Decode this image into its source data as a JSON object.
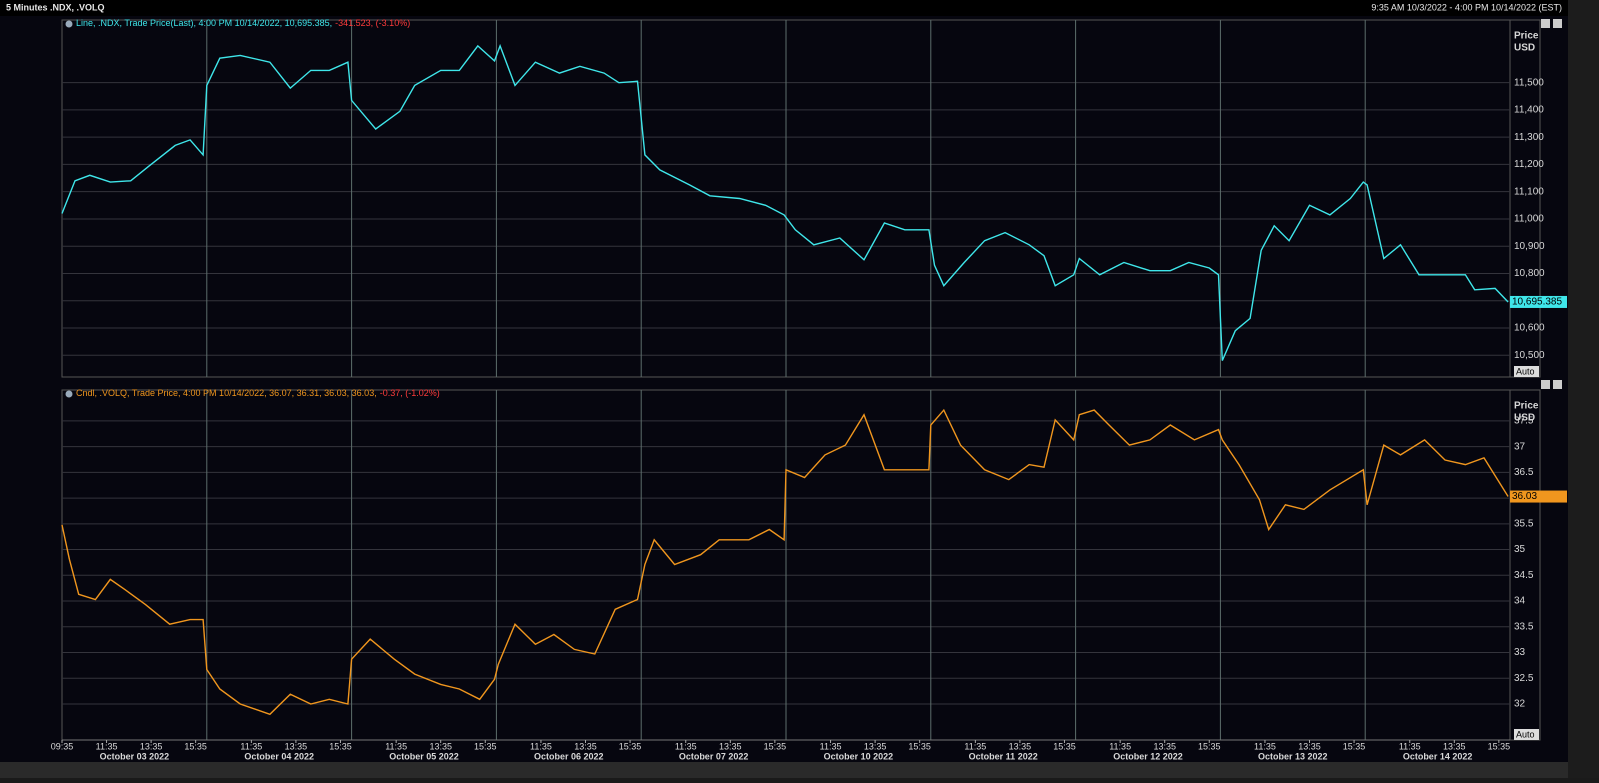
{
  "header": {
    "title": "5 Minutes .NDX, .VOLQ",
    "range": "9:35 AM 10/3/2022 - 4:00 PM 10/14/2022 (EST)"
  },
  "chart_data": [
    {
      "type": "line",
      "legend": "Line, .NDX, Trade Price(Last), 4:00 PM 10/14/2022, 10,695.385,",
      "legend_change": "-341.523, (-3.10%)",
      "ylabel": "Price",
      "yunit": "USD",
      "scale_button": "Auto",
      "last_label": "10,695.385",
      "color": "#3fe6ea",
      "grid": true,
      "xlim": [
        0,
        780
      ],
      "ylim": [
        10420,
        11730
      ],
      "yticks": [
        {
          "value": 10500,
          "label": "10,500"
        },
        {
          "value": 10600,
          "label": "10,600"
        },
        {
          "value": 10700,
          "label": "10,700"
        },
        {
          "value": 10800,
          "label": "10,800"
        },
        {
          "value": 10900,
          "label": "10,900"
        },
        {
          "value": 11000,
          "label": "11,000"
        },
        {
          "value": 11100,
          "label": "11,100"
        },
        {
          "value": 11200,
          "label": "11,200"
        },
        {
          "value": 11300,
          "label": "11,300"
        },
        {
          "value": 11400,
          "label": "11,400"
        },
        {
          "value": 11500,
          "label": "11,500"
        }
      ],
      "x": [
        0,
        7,
        15,
        26,
        37,
        47,
        61,
        69,
        76,
        78,
        85,
        96,
        112,
        123,
        134,
        144,
        154,
        156,
        169,
        182,
        190,
        204,
        214,
        224,
        233,
        236,
        244,
        255,
        268,
        279,
        292,
        300,
        310,
        314,
        322,
        338,
        349,
        365,
        379,
        389,
        395,
        405,
        419,
        432,
        443,
        454,
        467,
        470,
        475,
        486,
        497,
        508,
        521,
        529,
        535,
        545,
        548,
        559,
        572,
        586,
        597,
        607,
        618,
        623,
        625,
        632,
        640,
        646,
        653,
        661,
        672,
        683,
        694,
        701,
        703,
        712,
        721,
        731,
        742,
        756,
        761,
        772,
        779
      ],
      "values": [
        11020,
        11140,
        11160,
        11135,
        11140,
        11195,
        11270,
        11290,
        11235,
        11490,
        11590,
        11600,
        11575,
        11480,
        11545,
        11545,
        11575,
        11435,
        11330,
        11395,
        11490,
        11545,
        11545,
        11635,
        11580,
        11635,
        11490,
        11575,
        11535,
        11560,
        11535,
        11500,
        11505,
        11235,
        11180,
        11125,
        11085,
        11075,
        11050,
        11015,
        10960,
        10905,
        10930,
        10850,
        10985,
        10960,
        10960,
        10830,
        10755,
        10840,
        10920,
        10950,
        10905,
        10865,
        10755,
        10795,
        10855,
        10795,
        10840,
        10810,
        10810,
        10840,
        10820,
        10795,
        10480,
        10590,
        10635,
        10885,
        10975,
        10920,
        11050,
        11015,
        11075,
        11135,
        11125,
        10855,
        10905,
        10795,
        10795,
        10795,
        10740,
        10745,
        10695.385
      ]
    },
    {
      "type": "line",
      "legend": "Cndl, .VOLQ, Trade Price, 4:00 PM 10/14/2022, 36.07, 36.31, 36.03, 36.03,",
      "legend_change": "-0.37, (-1.02%)",
      "ylabel": "Price",
      "yunit": "USD",
      "scale_button": "Auto",
      "last_label": "36.03",
      "color": "#f0961e",
      "grid": true,
      "xlim": [
        0,
        780
      ],
      "ylim": [
        31.3,
        38.1
      ],
      "yticks": [
        32,
        32.5,
        33,
        33.5,
        34,
        34.5,
        35,
        35.5,
        36,
        36.5,
        37,
        37.5
      ],
      "xticks": [
        {
          "value": 0,
          "label": "09:35"
        },
        {
          "value": 24,
          "label": "11:35"
        },
        {
          "value": 48,
          "label": "13:35"
        },
        {
          "value": 72,
          "label": "15:35"
        },
        {
          "value": 102,
          "label": "11:35"
        },
        {
          "value": 126,
          "label": "13:35"
        },
        {
          "value": 150,
          "label": "15:35"
        },
        {
          "value": 180,
          "label": "11:35"
        },
        {
          "value": 204,
          "label": "13:35"
        },
        {
          "value": 228,
          "label": "15:35"
        },
        {
          "value": 258,
          "label": "11:35"
        },
        {
          "value": 282,
          "label": "13:35"
        },
        {
          "value": 306,
          "label": "15:35"
        },
        {
          "value": 336,
          "label": "11:35"
        },
        {
          "value": 360,
          "label": "13:35"
        },
        {
          "value": 384,
          "label": "15:35"
        },
        {
          "value": 414,
          "label": "11:35"
        },
        {
          "value": 438,
          "label": "13:35"
        },
        {
          "value": 462,
          "label": "15:35"
        },
        {
          "value": 492,
          "label": "11:35"
        },
        {
          "value": 516,
          "label": "13:35"
        },
        {
          "value": 540,
          "label": "15:35"
        },
        {
          "value": 570,
          "label": "11:35"
        },
        {
          "value": 594,
          "label": "13:35"
        },
        {
          "value": 618,
          "label": "15:35"
        },
        {
          "value": 648,
          "label": "11:35"
        },
        {
          "value": 672,
          "label": "13:35"
        },
        {
          "value": 696,
          "label": "15:35"
        },
        {
          "value": 726,
          "label": "11:35"
        },
        {
          "value": 750,
          "label": "13:35"
        },
        {
          "value": 774,
          "label": "15:35"
        }
      ],
      "day_labels": [
        "October 03 2022",
        "October 04 2022",
        "October 05 2022",
        "October 06 2022",
        "October 07 2022",
        "October 10 2022",
        "October 11 2022",
        "October 12 2022",
        "October 13 2022",
        "October 14 2022"
      ],
      "x": [
        0,
        4,
        9,
        18,
        26,
        34,
        45,
        58,
        69,
        76,
        78,
        85,
        96,
        112,
        123,
        134,
        144,
        154,
        156,
        166,
        179,
        190,
        204,
        214,
        225,
        233,
        235,
        244,
        255,
        265,
        276,
        287,
        298,
        310,
        314,
        319,
        330,
        344,
        354,
        370,
        381,
        389,
        390,
        400,
        411,
        422,
        432,
        443,
        454,
        467,
        468,
        475,
        484,
        497,
        510,
        521,
        529,
        535,
        545,
        548,
        556,
        564,
        575,
        586,
        597,
        610,
        623,
        625,
        634,
        645,
        650,
        659,
        669,
        683,
        701,
        703,
        712,
        721,
        734,
        745,
        756,
        766,
        779
      ],
      "values": [
        35.48,
        34.81,
        34.13,
        34.03,
        34.42,
        34.22,
        33.93,
        33.55,
        33.64,
        33.64,
        32.67,
        32.29,
        32.0,
        31.8,
        32.19,
        32.0,
        32.09,
        32.0,
        32.87,
        33.26,
        32.87,
        32.58,
        32.38,
        32.29,
        32.09,
        32.48,
        32.77,
        33.55,
        33.16,
        33.35,
        33.06,
        32.97,
        33.84,
        34.03,
        34.71,
        35.19,
        34.71,
        34.9,
        35.19,
        35.19,
        35.39,
        35.19,
        36.55,
        36.4,
        36.84,
        37.03,
        37.62,
        36.55,
        36.55,
        36.55,
        37.42,
        37.71,
        37.03,
        36.55,
        36.36,
        36.65,
        36.6,
        37.52,
        37.13,
        37.62,
        37.71,
        37.42,
        37.03,
        37.13,
        37.42,
        37.13,
        37.33,
        37.13,
        36.65,
        35.97,
        35.39,
        35.87,
        35.78,
        36.16,
        36.55,
        35.87,
        37.03,
        36.84,
        37.13,
        36.74,
        36.65,
        36.78,
        36.03
      ]
    }
  ]
}
